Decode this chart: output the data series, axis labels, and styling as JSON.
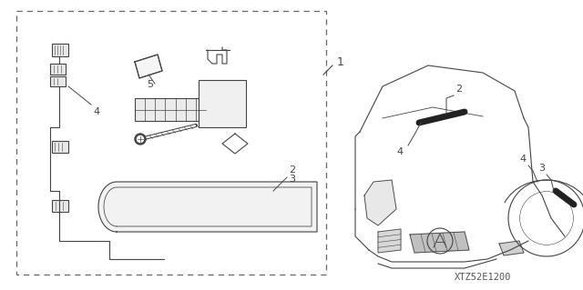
{
  "background_color": "#ffffff",
  "diagram_code": "XTZ52E1200",
  "fig_width": 6.4,
  "fig_height": 3.19,
  "dpi": 100,
  "line_color": "#444444",
  "lw": 0.8
}
